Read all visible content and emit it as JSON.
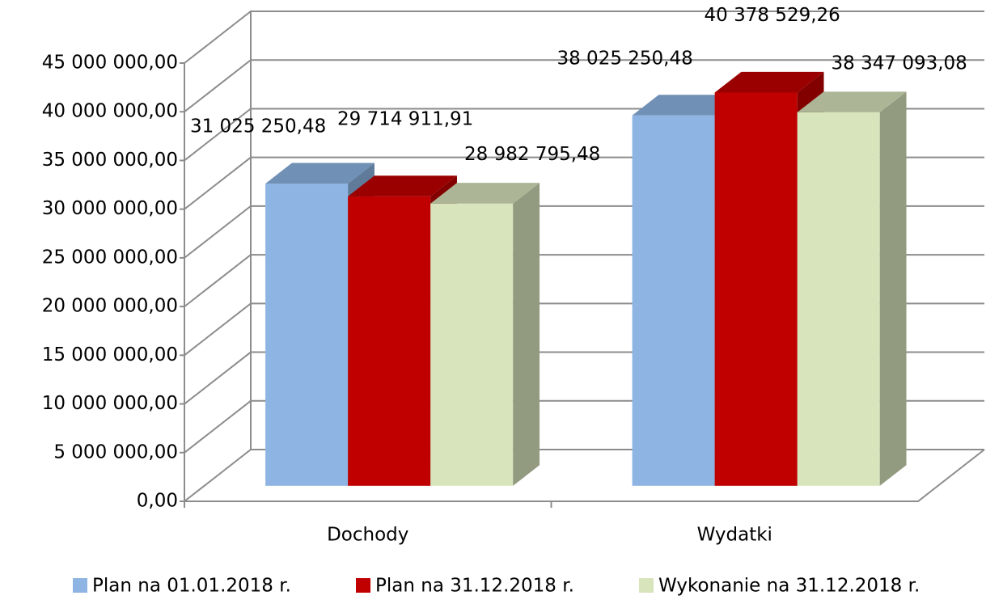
{
  "chart_data": {
    "type": "bar3d",
    "categories": [
      "Dochody",
      "Wydatki"
    ],
    "series": [
      {
        "name": "Plan na 01.01.2018 r.",
        "color": "#8db4e2",
        "values": [
          31025250.48,
          38025250.48
        ],
        "value_labels": [
          "31 025 250,48",
          "38 025 250,48"
        ]
      },
      {
        "name": "Plan na 31.12.2018 r.",
        "color": "#c00000",
        "values": [
          29714911.91,
          40378529.26
        ],
        "value_labels": [
          "29 714 911,91",
          "40 378 529,26"
        ]
      },
      {
        "name": "Wykonanie na 31.12.2018 r.",
        "color": "#d7e4bc",
        "values": [
          28982795.48,
          38347093.08
        ],
        "value_labels": [
          "28 982 795,48",
          "38 347 093,08"
        ]
      }
    ],
    "ylim": [
      0,
      45000000
    ],
    "yticks": [
      {
        "value": 0,
        "label": "0,00"
      },
      {
        "value": 5000000,
        "label": "5 000 000,00"
      },
      {
        "value": 10000000,
        "label": "10 000 000,00"
      },
      {
        "value": 15000000,
        "label": "15 000 000,00"
      },
      {
        "value": 20000000,
        "label": "20 000 000,00"
      },
      {
        "value": 25000000,
        "label": "25 000 000,00"
      },
      {
        "value": 30000000,
        "label": "30 000 000,00"
      },
      {
        "value": 35000000,
        "label": "35 000 000,00"
      },
      {
        "value": 40000000,
        "label": "40 000 000,00"
      },
      {
        "value": 45000000,
        "label": "45 000 000,00"
      }
    ],
    "grid": true,
    "legend": "bottom"
  }
}
